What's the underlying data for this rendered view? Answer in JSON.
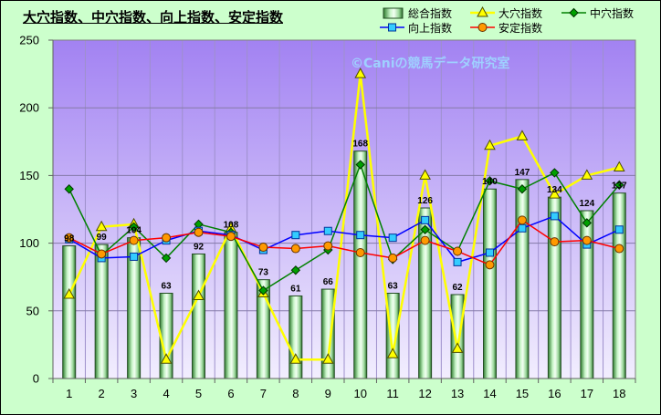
{
  "chart_data": {
    "type": "bar",
    "title": "大穴指数、中穴指数、向上指数、安定指数",
    "categories": [
      "1",
      "2",
      "3",
      "4",
      "5",
      "6",
      "7",
      "8",
      "9",
      "10",
      "11",
      "12",
      "13",
      "14",
      "15",
      "16",
      "17",
      "18"
    ],
    "ylim": [
      0,
      250
    ],
    "yticks": [
      0,
      50,
      100,
      150,
      200,
      250
    ],
    "grid": true,
    "legend_position": "top-right",
    "series": [
      {
        "name": "総合指数",
        "type": "bar",
        "data_labels": true,
        "color": "#66bb66",
        "values": [
          98,
          99,
          104,
          63,
          92,
          108,
          73,
          61,
          66,
          168,
          63,
          126,
          62,
          140,
          147,
          134,
          124,
          137
        ]
      },
      {
        "name": "大穴指数",
        "type": "line",
        "marker": "triangle",
        "color": "#ffff00",
        "marker_fill": "#ffff00",
        "marker_stroke": "#4d4d00",
        "values": [
          62,
          112,
          114,
          14,
          61,
          111,
          63,
          14,
          14,
          225,
          18,
          150,
          22,
          172,
          179,
          136,
          150,
          156
        ]
      },
      {
        "name": "中穴指数",
        "type": "line",
        "marker": "diamond",
        "color": "#008000",
        "marker_fill": "#00a000",
        "marker_stroke": "#003300",
        "values": [
          140,
          91,
          112,
          89,
          114,
          108,
          65,
          80,
          95,
          158,
          88,
          110,
          94,
          146,
          140,
          152,
          115,
          143
        ]
      },
      {
        "name": "向上指数",
        "type": "line",
        "marker": "square",
        "color": "#0000ff",
        "marker_fill": "#33ccff",
        "marker_stroke": "#003399",
        "values": [
          103,
          89,
          90,
          102,
          109,
          106,
          95,
          106,
          109,
          106,
          104,
          117,
          86,
          93,
          111,
          120,
          99,
          110
        ]
      },
      {
        "name": "安定指数",
        "type": "line",
        "marker": "circle",
        "color": "#ff0000",
        "marker_fill": "#ff9900",
        "marker_stroke": "#663300",
        "values": [
          104,
          92,
          102,
          104,
          108,
          105,
          97,
          96,
          98,
          93,
          89,
          102,
          94,
          84,
          117,
          101,
          102,
          96
        ]
      }
    ]
  },
  "watermark": "©Caniの競馬データ研究室",
  "colors": {
    "background": "#ccffcc",
    "plot_top": "#a282f2",
    "plot_bottom": "#f2eefe"
  }
}
